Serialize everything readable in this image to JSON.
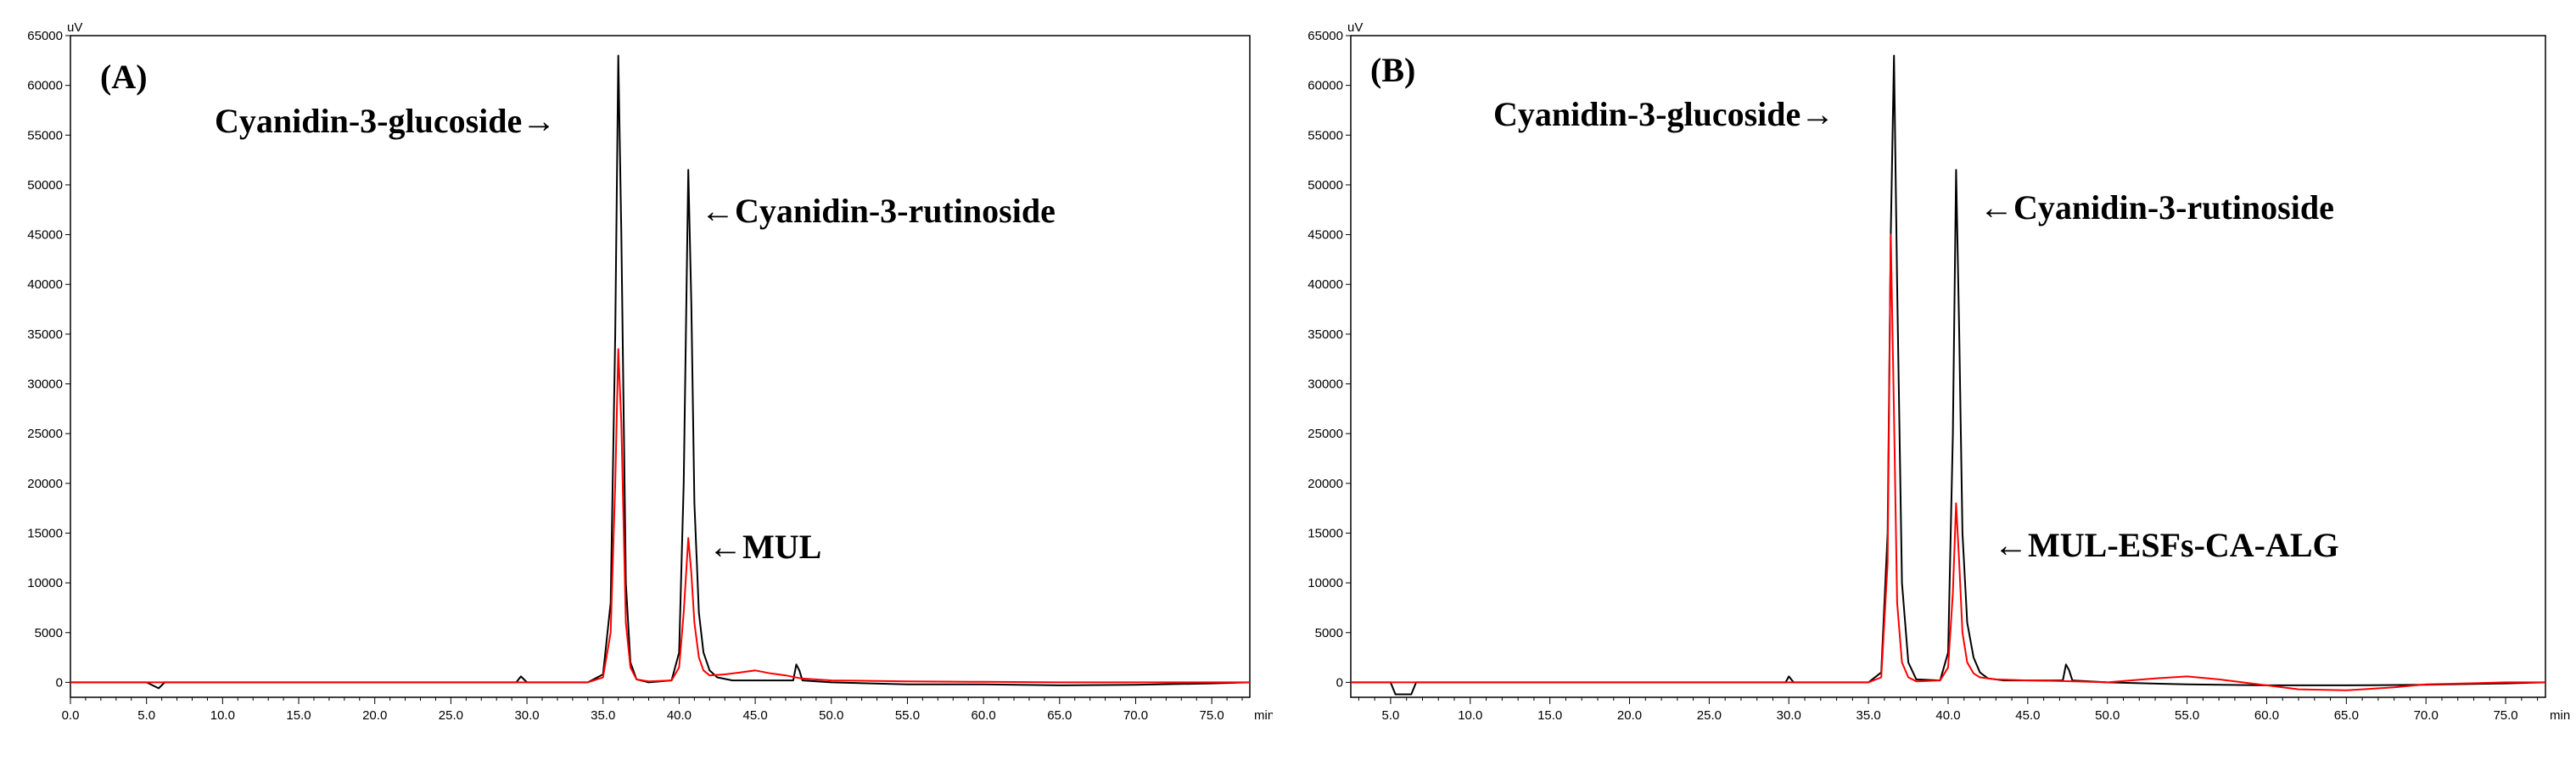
{
  "chart_data": [
    {
      "type": "line",
      "panel_label": "(A)",
      "y_unit": "uV",
      "x_unit": "min",
      "xlim": [
        0,
        77.5
      ],
      "ylim": [
        -1500,
        65000
      ],
      "x_ticks": [
        "0.0",
        "5.0",
        "10.0",
        "15.0",
        "20.0",
        "25.0",
        "30.0",
        "35.0",
        "40.0",
        "45.0",
        "50.0",
        "55.0",
        "60.0",
        "65.0",
        "70.0",
        "75.0"
      ],
      "y_ticks": [
        "0",
        "5000",
        "10000",
        "15000",
        "20000",
        "25000",
        "30000",
        "35000",
        "40000",
        "45000",
        "50000",
        "55000",
        "60000",
        "65000"
      ],
      "annotations": [
        "Cyanidin-3-glucoside→",
        "←Cyanidin-3-rutinoside",
        "←MUL"
      ],
      "series": [
        {
          "color": "#000000",
          "x": [
            0,
            5.0,
            5.8,
            6.2,
            10,
            20,
            29.3,
            29.6,
            30.0,
            34,
            35.0,
            35.5,
            35.8,
            36.0,
            36.2,
            36.5,
            36.8,
            37.2,
            38,
            39.5,
            40.0,
            40.3,
            40.6,
            40.8,
            41.0,
            41.3,
            41.6,
            42.0,
            42.5,
            43.5,
            47.5,
            47.7,
            47.9,
            48.1,
            50,
            55,
            60,
            65,
            70,
            75,
            77.5
          ],
          "y": [
            0,
            0,
            -600,
            0,
            0,
            0,
            0,
            600,
            0,
            0,
            800,
            8000,
            35000,
            63000,
            45000,
            10000,
            2000,
            300,
            0,
            200,
            3000,
            20000,
            51500,
            38000,
            18000,
            7000,
            3000,
            1200,
            500,
            200,
            200,
            1800,
            1200,
            200,
            0,
            -200,
            -200,
            -300,
            -250,
            -100,
            0
          ]
        },
        {
          "color": "#ff0000",
          "x": [
            0,
            10,
            20,
            34,
            35.0,
            35.5,
            35.8,
            36.0,
            36.2,
            36.5,
            36.8,
            37.2,
            38,
            39.5,
            40.0,
            40.3,
            40.6,
            40.8,
            41.0,
            41.3,
            41.6,
            42.0,
            43,
            44,
            45,
            46,
            47,
            48,
            50,
            55,
            60,
            65,
            70,
            75,
            77.5
          ],
          "y": [
            0,
            0,
            0,
            0,
            500,
            5000,
            20000,
            33500,
            26000,
            6000,
            1500,
            300,
            100,
            200,
            1500,
            7000,
            14500,
            11000,
            6000,
            2500,
            1200,
            700,
            800,
            1000,
            1200,
            900,
            700,
            400,
            200,
            100,
            50,
            0,
            0,
            0,
            0
          ]
        }
      ]
    },
    {
      "type": "line",
      "panel_label": "(B)",
      "y_unit": "uV",
      "x_unit": "min",
      "xlim": [
        2.5,
        77.5
      ],
      "ylim": [
        -1500,
        65000
      ],
      "x_ticks": [
        "5.0",
        "10.0",
        "15.0",
        "20.0",
        "25.0",
        "30.0",
        "35.0",
        "40.0",
        "45.0",
        "50.0",
        "55.0",
        "60.0",
        "65.0",
        "70.0",
        "75.0"
      ],
      "y_ticks": [
        "0",
        "5000",
        "10000",
        "15000",
        "20000",
        "25000",
        "30000",
        "35000",
        "40000",
        "45000",
        "50000",
        "55000",
        "60000",
        "65000"
      ],
      "annotations": [
        "Cyanidin-3-glucoside→",
        "←Cyanidin-3-rutinoside",
        "←MUL-ESFs-CA-ALG"
      ],
      "series": [
        {
          "color": "#000000",
          "x": [
            2.5,
            5.0,
            5.3,
            6.3,
            6.6,
            10,
            20,
            29.8,
            30.0,
            30.3,
            35.0,
            35.8,
            36.2,
            36.4,
            36.6,
            36.8,
            37.1,
            37.5,
            38,
            39.5,
            40.0,
            40.3,
            40.5,
            40.7,
            40.9,
            41.2,
            41.6,
            42.0,
            42.5,
            43.5,
            47.2,
            47.4,
            47.6,
            47.8,
            50,
            55,
            60,
            65,
            70,
            75,
            77.5
          ],
          "y": [
            0,
            0,
            -1200,
            -1200,
            0,
            0,
            0,
            0,
            600,
            0,
            0,
            1000,
            15000,
            45000,
            63000,
            40000,
            10000,
            2000,
            300,
            200,
            3000,
            25000,
            51500,
            35000,
            15000,
            6000,
            2500,
            1000,
            400,
            200,
            200,
            1800,
            1200,
            200,
            0,
            -200,
            -300,
            -300,
            -250,
            -100,
            0
          ]
        },
        {
          "color": "#ff0000",
          "x": [
            2.5,
            10,
            20,
            35.0,
            35.8,
            36.2,
            36.4,
            36.6,
            36.8,
            37.1,
            37.5,
            38,
            39.5,
            40.0,
            40.3,
            40.5,
            40.7,
            40.9,
            41.2,
            41.6,
            42.0,
            43,
            45,
            48,
            50,
            53,
            55,
            57,
            60,
            62,
            65,
            68,
            70,
            75,
            77.5
          ],
          "y": [
            0,
            0,
            0,
            0,
            500,
            12000,
            45000,
            27000,
            8000,
            2000,
            500,
            100,
            200,
            1500,
            9000,
            18000,
            12000,
            5000,
            2000,
            900,
            500,
            300,
            200,
            100,
            0,
            400,
            600,
            300,
            -300,
            -700,
            -800,
            -500,
            -200,
            0,
            0
          ]
        }
      ]
    }
  ]
}
